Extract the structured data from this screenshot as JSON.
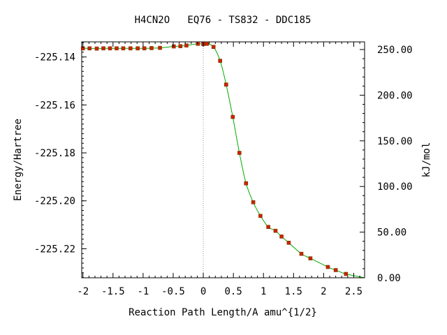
{
  "chart_data": {
    "type": "line",
    "title": "H4CN2O   EQ76 - TS832 - DDC185",
    "xlabel": "Reaction Path Length/A amu^{1/2}",
    "ylabel": "Energy/Hartree",
    "y2label": "kJ/mol",
    "xlim": [
      -2.02,
      2.68
    ],
    "ylim": [
      -225.2321,
      -225.1337
    ],
    "y2lim": [
      0.0,
      258.4
    ],
    "x_ticks": [
      -2,
      -1.5,
      -1,
      -0.5,
      0,
      0.5,
      1,
      1.5,
      2,
      2.5
    ],
    "x_tick_labels": [
      "-2",
      "-1.5",
      "-1",
      "-0.5",
      "0",
      "0.5",
      "1",
      "1.5",
      "2",
      "2.5"
    ],
    "y_ticks": [
      -225.14,
      -225.16,
      -225.18,
      -225.2,
      -225.22
    ],
    "y_tick_labels": [
      "-225.14",
      "-225.16",
      "-225.18",
      "-225.20",
      "-225.22"
    ],
    "y2_ticks": [
      0,
      50,
      100,
      150,
      200,
      250
    ],
    "y2_tick_labels": [
      "0.00",
      "50.00",
      "100.00",
      "150.00",
      "200.00",
      "250.00"
    ],
    "ts_marker_x": 0.0,
    "colors": {
      "line": "#00aa00",
      "marker": "#cc2200",
      "ts_line": "#999999"
    },
    "series": [
      {
        "x": [
          -2.0,
          -1.89,
          -1.77,
          -1.66,
          -1.55,
          -1.44,
          -1.33,
          -1.21,
          -1.09,
          -0.98,
          -0.86,
          -0.72,
          -0.49,
          -0.38,
          -0.28,
          -0.09,
          0.0,
          0.06,
          0.17,
          0.28,
          0.38,
          0.49,
          0.6,
          0.71,
          0.83,
          0.95,
          1.08,
          1.2,
          1.3,
          1.42,
          1.63,
          1.78,
          2.07,
          2.2,
          2.37,
          2.68
        ],
        "y": [
          -225.1364,
          -225.1364,
          -225.1365,
          -225.1364,
          -225.1364,
          -225.1364,
          -225.1364,
          -225.1364,
          -225.1364,
          -225.1364,
          -225.1363,
          -225.1362,
          -225.1356,
          -225.1355,
          -225.1352,
          -225.1345,
          -225.1346,
          -225.1345,
          -225.1358,
          -225.1416,
          -225.1515,
          -225.165,
          -225.18,
          -225.1927,
          -225.2006,
          -225.2063,
          -225.2109,
          -225.2125,
          -225.2149,
          -225.2175,
          -225.2221,
          -225.224,
          -225.2276,
          -225.2289,
          -225.2305,
          -225.2321
        ],
        "markers": [
          true,
          true,
          true,
          true,
          true,
          true,
          true,
          true,
          true,
          true,
          true,
          true,
          true,
          true,
          true,
          true,
          true,
          true,
          true,
          true,
          true,
          true,
          true,
          true,
          true,
          true,
          true,
          true,
          true,
          true,
          true,
          true,
          true,
          true,
          true,
          false
        ]
      }
    ]
  }
}
